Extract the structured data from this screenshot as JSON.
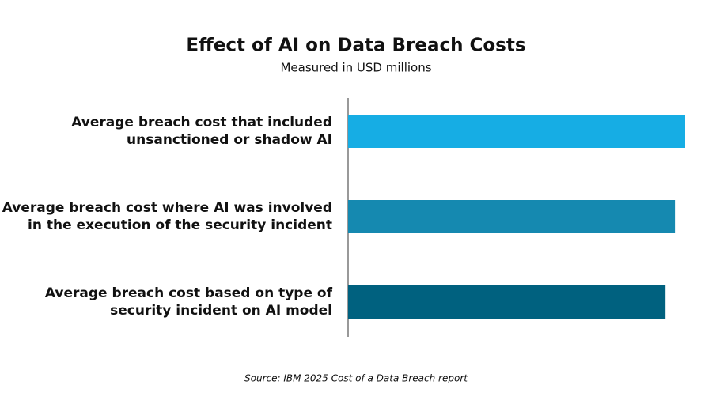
{
  "chart_data": {
    "type": "hbar",
    "title": "Effect of AI on Data Breach Costs",
    "subtitle": "Measured in USD millions",
    "source": "Source: IBM 2025 Cost of a Data Breach report",
    "categories": [
      "Average breach cost that included unsanctioned or shadow AI",
      "Average breach cost where AI was involved in the execution of the security incident",
      "Average breach cost based on type of security incident on AI model"
    ],
    "values": [
      4.63,
      4.49,
      4.36
    ],
    "colors": [
      "#16ade4",
      "#1589b0",
      "#00617f"
    ],
    "xlim": [
      0,
      4.63
    ]
  }
}
